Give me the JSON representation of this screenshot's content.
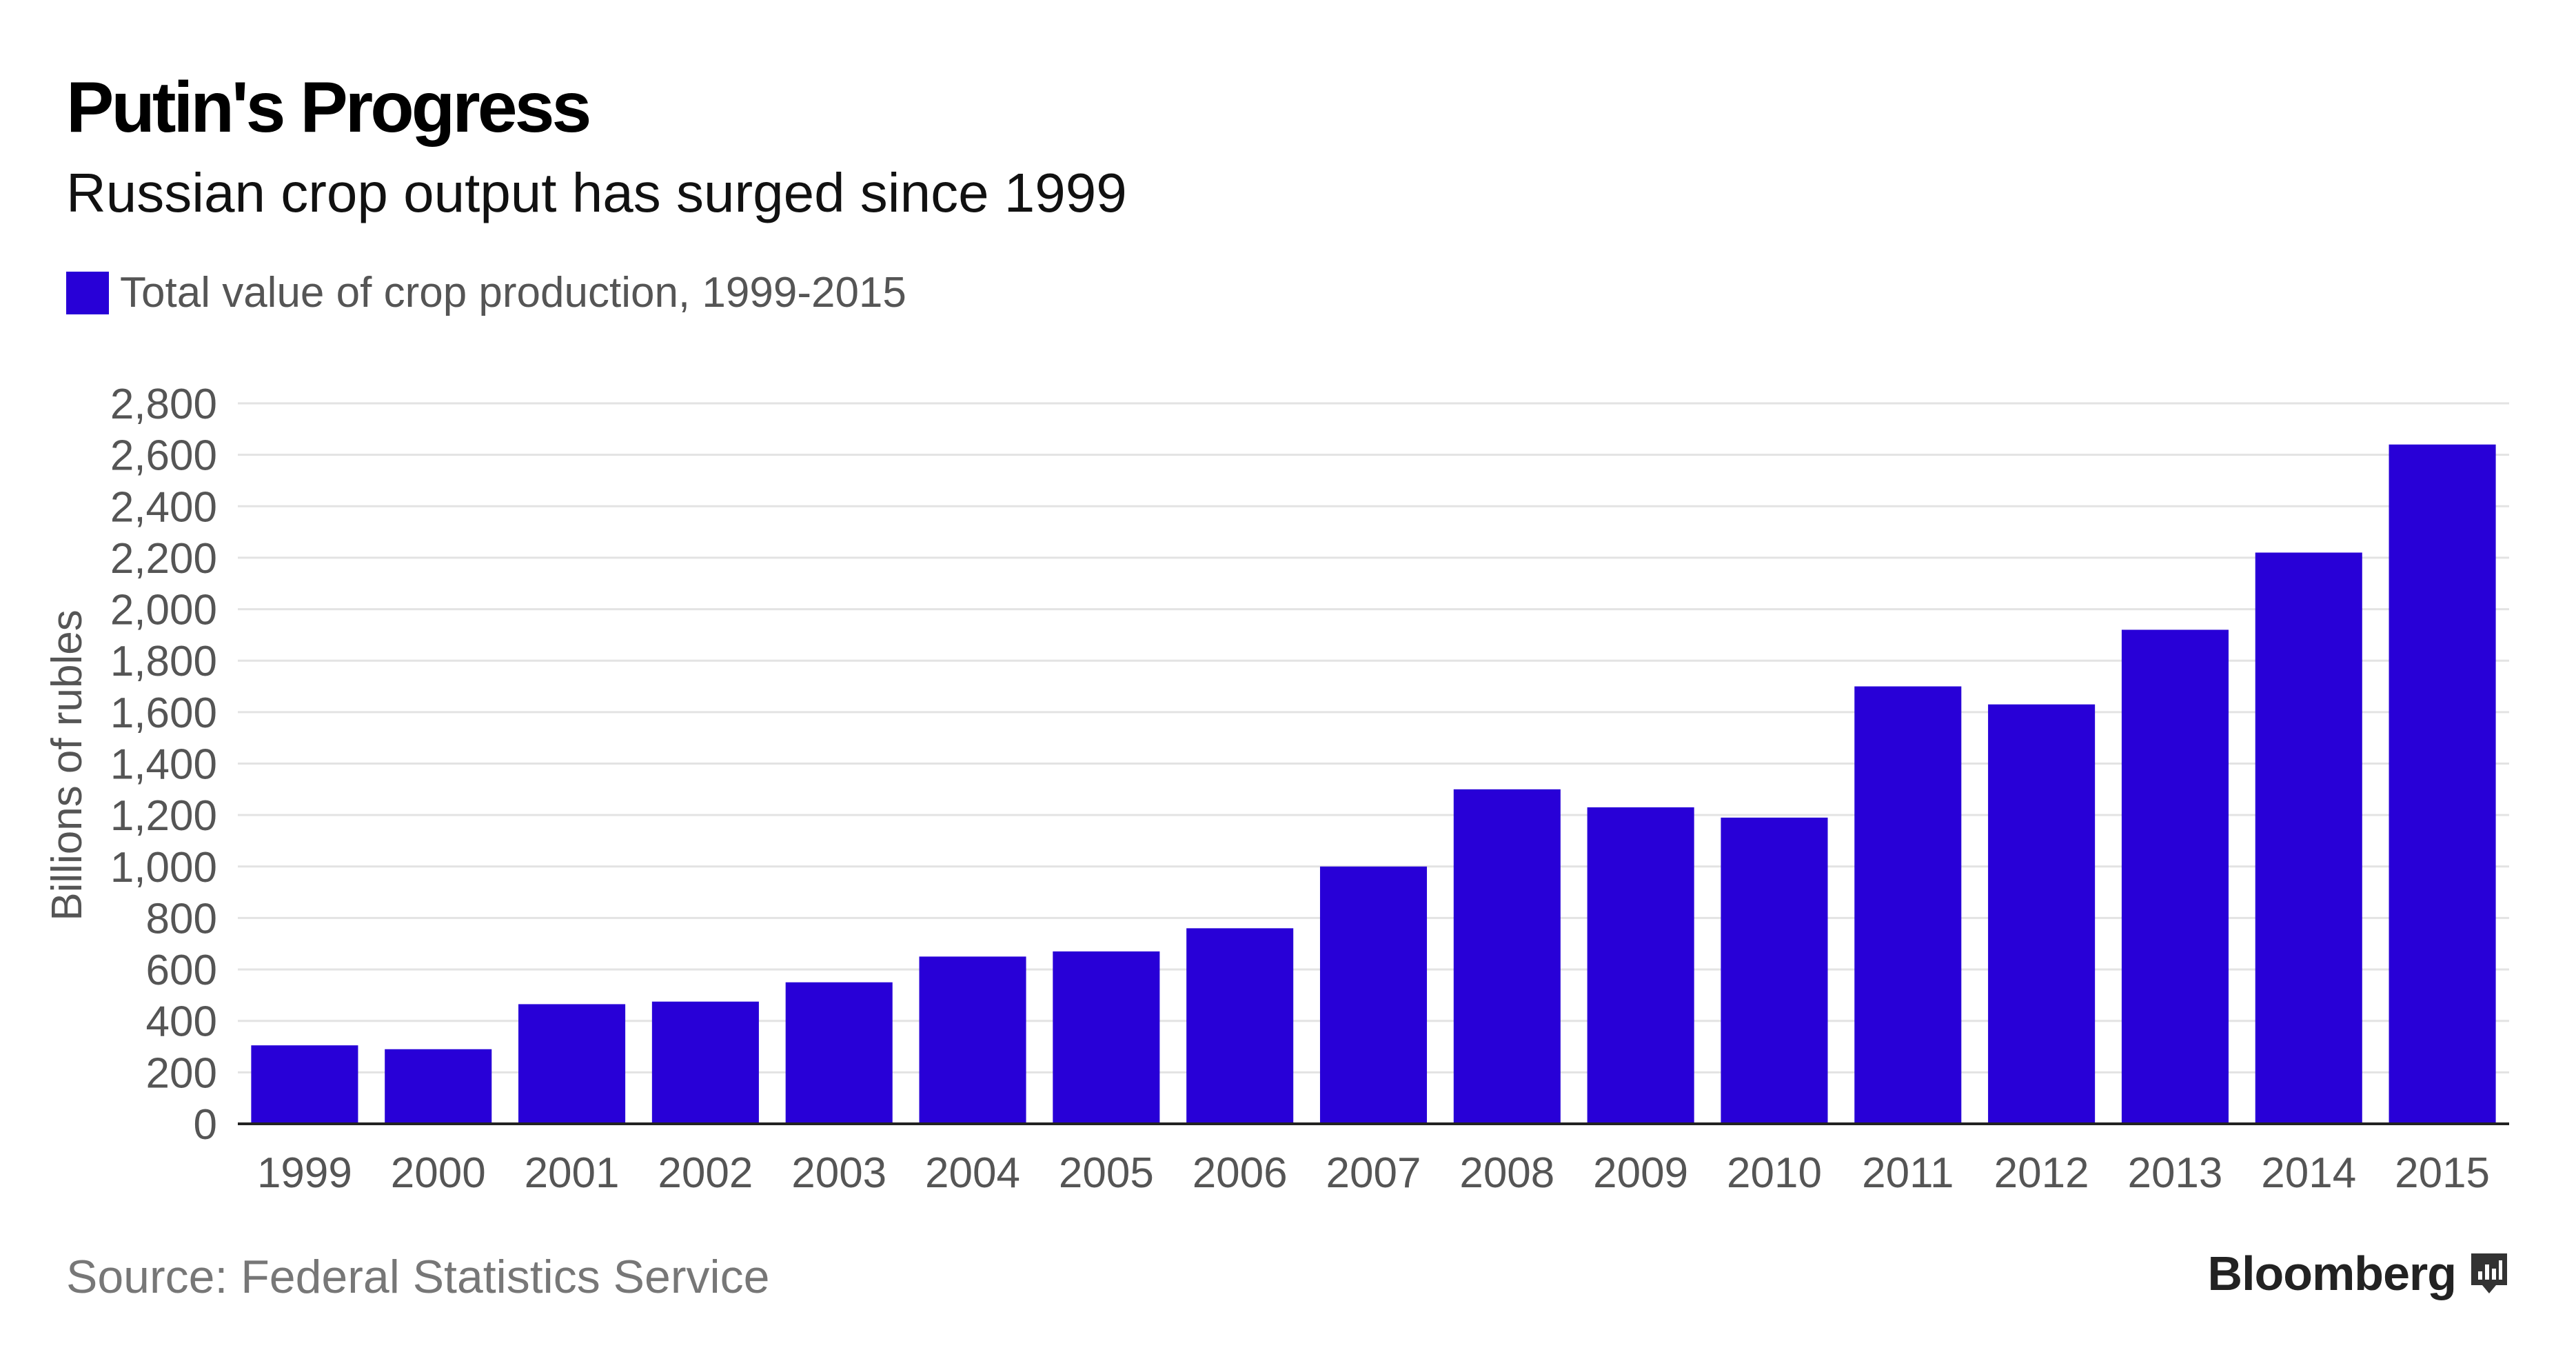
{
  "header": {
    "title": "Putin's Progress",
    "subtitle": "Russian crop output has surged since 1999"
  },
  "legend": {
    "label": "Total value of crop production, 1999-2015"
  },
  "footer": {
    "source": "Source: Federal Statistics Service",
    "brand": "Bloomberg",
    "brand_icon": "bloomberg-chart-icon"
  },
  "colors": {
    "bar": "#2800D7",
    "grid": "#e3e3e3",
    "axis": "#222222",
    "tick_text": "#555555"
  },
  "chart_data": {
    "type": "bar",
    "title": "Putin's Progress",
    "subtitle": "Russian crop output has surged since 1999",
    "xlabel": "",
    "ylabel": "Billions of rubles",
    "ylim": [
      0,
      2800
    ],
    "yticks": [
      0,
      200,
      400,
      600,
      800,
      1000,
      1200,
      1400,
      1600,
      1800,
      2000,
      2200,
      2400,
      2600,
      2800
    ],
    "ytick_labels": [
      "0",
      "200",
      "400",
      "600",
      "800",
      "1,000",
      "1,200",
      "1,400",
      "1,600",
      "1,800",
      "2,000",
      "2,200",
      "2,400",
      "2,600",
      "2,800"
    ],
    "grid": true,
    "legend_position": "top-left",
    "categories": [
      "1999",
      "2000",
      "2001",
      "2002",
      "2003",
      "2004",
      "2005",
      "2006",
      "2007",
      "2008",
      "2009",
      "2010",
      "2011",
      "2012",
      "2013",
      "2014",
      "2015"
    ],
    "series": [
      {
        "name": "Total value of crop production, 1999-2015",
        "values": [
          305,
          290,
          465,
          475,
          550,
          650,
          670,
          760,
          1000,
          1300,
          1230,
          1190,
          1700,
          1630,
          1920,
          2220,
          2640
        ]
      }
    ]
  }
}
